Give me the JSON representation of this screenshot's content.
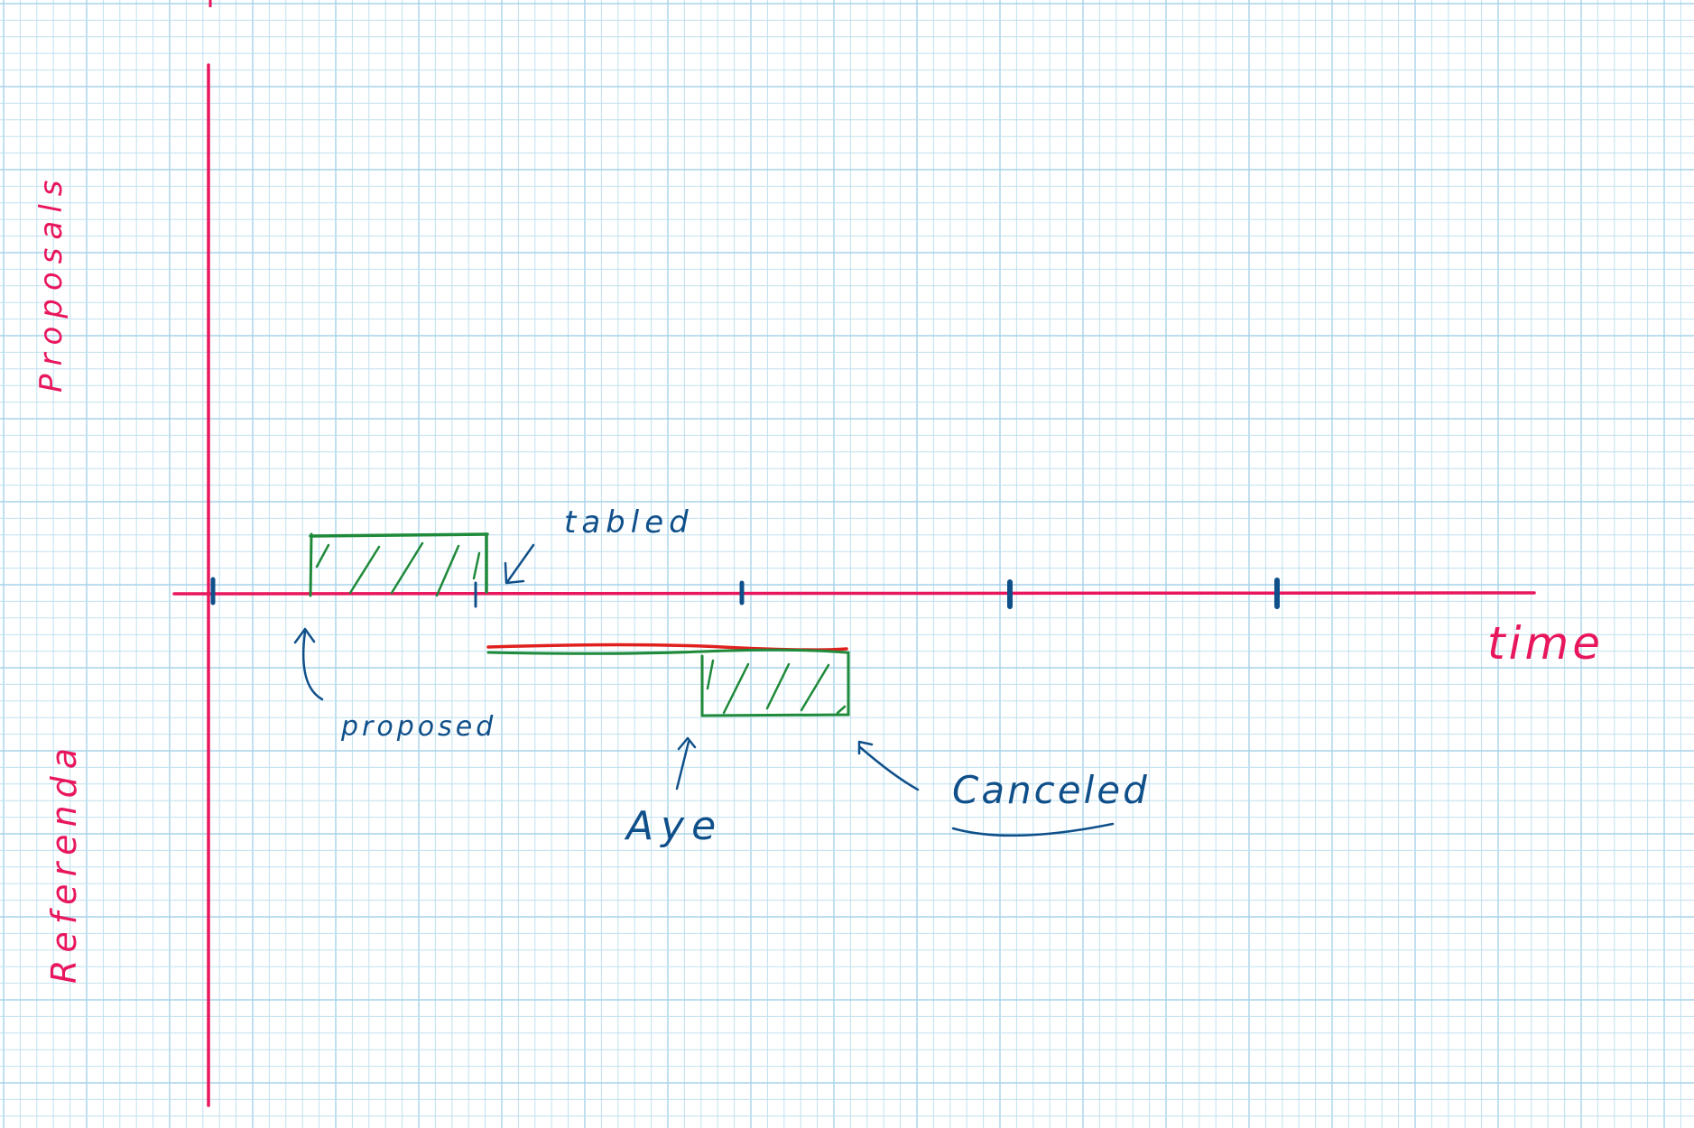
{
  "labels": {
    "y_top": "Proposals",
    "y_bottom": "Referenda",
    "x_axis": "time",
    "tabled": "tabled",
    "proposed": "proposed",
    "aye": "Aye",
    "canceled": "Canceled"
  },
  "colors": {
    "paper": "#ffffff",
    "grid": "#bfe0ef",
    "axis": "#e8175d",
    "ink": "#10508a",
    "box": "#1e8a3a",
    "red_line": "#e0201e"
  }
}
